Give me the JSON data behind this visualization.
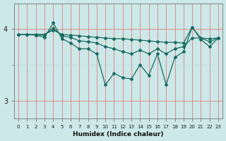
{
  "xlabel": "Humidex (Indice chaleur)",
  "bg_color": "#cce8e8",
  "line_color": "#1a6b60",
  "grid_major_color": "#e08080",
  "grid_minor_color": "#b8d8d8",
  "x_values": [
    0,
    1,
    2,
    3,
    4,
    5,
    6,
    7,
    8,
    9,
    10,
    11,
    12,
    13,
    14,
    15,
    16,
    17,
    18,
    19,
    20,
    21,
    22,
    23
  ],
  "series": [
    [
      3.92,
      3.92,
      3.92,
      3.92,
      3.98,
      3.92,
      3.91,
      3.9,
      3.89,
      3.88,
      3.87,
      3.86,
      3.86,
      3.85,
      3.84,
      3.83,
      3.82,
      3.81,
      3.81,
      3.8,
      4.02,
      3.87,
      3.86,
      3.87
    ],
    [
      3.92,
      3.92,
      3.91,
      3.91,
      4.01,
      3.9,
      3.88,
      3.83,
      3.82,
      3.8,
      3.75,
      3.72,
      3.68,
      3.65,
      3.7,
      3.65,
      3.72,
      3.65,
      3.72,
      3.75,
      3.87,
      3.87,
      3.82,
      3.87
    ],
    [
      3.92,
      3.92,
      3.91,
      3.88,
      4.08,
      3.86,
      3.8,
      3.72,
      3.72,
      3.65,
      3.22,
      3.38,
      3.32,
      3.3,
      3.5,
      3.35,
      3.65,
      3.22,
      3.6,
      3.68,
      4.02,
      3.85,
      3.75,
      3.87
    ]
  ],
  "ylim": [
    2.75,
    4.35
  ],
  "yticks": [
    3,
    4
  ],
  "xlim": [
    -0.5,
    23.5
  ],
  "marker": "D",
  "markersize": 2.0,
  "linewidth": 0.9
}
